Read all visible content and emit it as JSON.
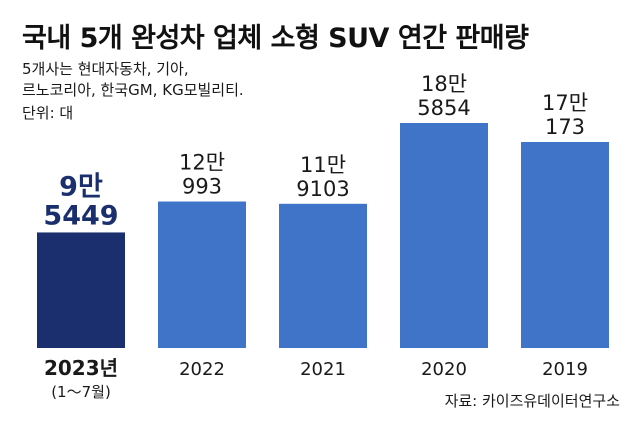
{
  "title": "국내 5개 완성차 업체 소형 SUV 연간 판매량",
  "notes": [
    "5개사는 현대자동차, 기아,",
    "르노코리아, 한국GM, KG모빌리티.",
    "단위: 대"
  ],
  "source": "자료: 카이즈유데이터연구소",
  "colors": {
    "highlight_bar": "#1b2f6e",
    "bar": "#3f74c8",
    "highlight_label": "#1b2f6e",
    "label": "#1a1a1a"
  },
  "chart_data": {
    "type": "bar",
    "categories": [
      "2023년",
      "2022",
      "2021",
      "2020",
      "2019"
    ],
    "category_sublabels": [
      "(1～7월)",
      "",
      "",
      "",
      ""
    ],
    "values": [
      95449,
      120993,
      119103,
      185854,
      170173
    ],
    "value_labels": [
      [
        "9만",
        "5449"
      ],
      [
        "12만",
        "993"
      ],
      [
        "11만",
        "9103"
      ],
      [
        "18만",
        "5854"
      ],
      [
        "17만",
        "173"
      ]
    ],
    "highlight_index": 0,
    "title": "국내 5개 완성차 업체 소형 SUV 연간 판매량",
    "xlabel": "",
    "ylabel": "",
    "unit": "대",
    "ylim": [
      0,
      185854
    ],
    "grid": false,
    "legend": "none"
  }
}
